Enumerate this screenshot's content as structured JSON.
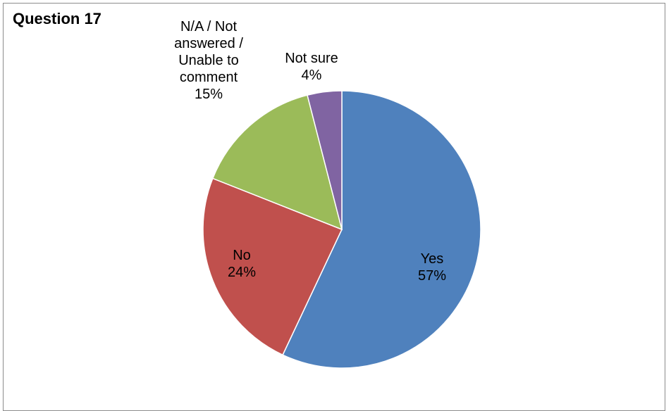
{
  "chart_data": {
    "type": "pie",
    "title": "Question 17",
    "slices": [
      {
        "label": "Yes",
        "value": 57,
        "display": "57%",
        "color": "#4f81bd"
      },
      {
        "label": "No",
        "value": 24,
        "display": "24%",
        "color": "#c0504d"
      },
      {
        "label": "N/A  / Not answered / Unable to comment",
        "value": 15,
        "display": "15%",
        "color": "#9bbb59"
      },
      {
        "label": "Not sure",
        "value": 4,
        "display": "4%",
        "color": "#8064a2"
      }
    ],
    "label_lines": [
      [
        "Yes",
        "57%"
      ],
      [
        "No",
        "24%"
      ],
      [
        "N/A  / Not",
        "answered /",
        "Unable to",
        "comment",
        "15%"
      ],
      [
        "Not sure",
        "4%"
      ]
    ],
    "legend": "none",
    "start_angle": "12 o'clock",
    "direction": "clockwise"
  }
}
